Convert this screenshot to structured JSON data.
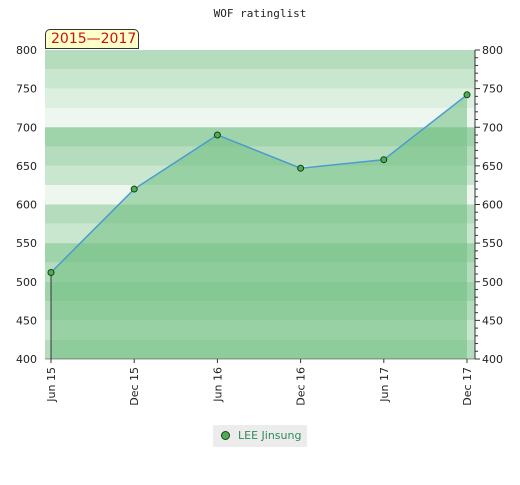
{
  "title": "WOF ratinglist",
  "badge": "2015—2017",
  "legend": {
    "label": "LEE Jinsung"
  },
  "colors": {
    "line": "#4a9bd0",
    "fill": "#6fbf80",
    "marker_fill": "#4caf50",
    "marker_stroke": "#1b3d1e",
    "band_light": "#f2f7f3",
    "band_mid": "#c8e6cf",
    "band_dark": "#9fd4aa"
  },
  "chart_data": {
    "type": "area",
    "title": "WOF ratinglist",
    "x": [
      "Jun 15",
      "Dec 15",
      "Jun 16",
      "Dec 16",
      "Jun 17",
      "Dec 17"
    ],
    "series": [
      {
        "name": "LEE Jinsung",
        "values": [
          512,
          620,
          690,
          647,
          658,
          742
        ]
      }
    ],
    "ylim": [
      400,
      800
    ],
    "yticks": [
      400,
      450,
      500,
      550,
      600,
      650,
      700,
      750,
      800
    ],
    "y_axis_both_sides": true,
    "legend_position": "bottom-center",
    "grid": "horizontal-bands"
  }
}
